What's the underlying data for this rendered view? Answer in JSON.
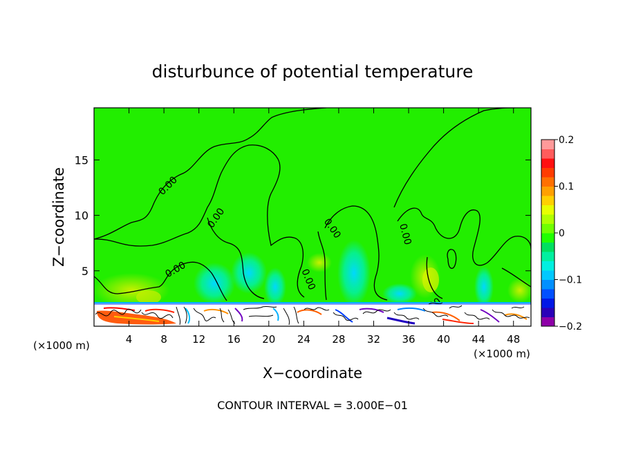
{
  "chart_data": {
    "type": "heatmap",
    "title": "disturbunce of potential temperature",
    "xlabel": "X−coordinate",
    "ylabel": "Z−coordinate",
    "x_unit_left": "(×1000 m)",
    "x_unit_right": "(×1000 m)",
    "xlim": [
      0,
      50
    ],
    "ylim": [
      0,
      19.7
    ],
    "x_ticks": [
      4,
      8,
      12,
      16,
      20,
      24,
      28,
      32,
      36,
      40,
      44,
      48
    ],
    "y_ticks": [
      5,
      10,
      15
    ],
    "colorbar": {
      "min": -0.2,
      "max": 0.2,
      "tick_values": [
        0.2,
        0.1,
        0,
        -0.1,
        -0.2
      ],
      "tick_labels": [
        "0.2",
        "0.1",
        "0",
        "−0.1",
        "−0.2"
      ],
      "colors": [
        "#8e00a8",
        "#2a00b8",
        "#0018e6",
        "#0050ff",
        "#0090ff",
        "#00c8ff",
        "#00f0e0",
        "#00f0a0",
        "#00e060",
        "#20ff00",
        "#70ff00",
        "#b0ff00",
        "#e8ff00",
        "#ffd000",
        "#ffa000",
        "#ff7000",
        "#ff3c00",
        "#ff1010",
        "#ff5c5c",
        "#ff9a9a"
      ]
    },
    "contour_labels": [
      "0.00",
      "0.00",
      "0.00",
      "0.00",
      "0.00",
      "0.00",
      "0.00"
    ],
    "contour_interval_text": "CONTOUR INTERVAL = 3.000E−01",
    "grid": false,
    "background_value_color": "#22ee00"
  }
}
